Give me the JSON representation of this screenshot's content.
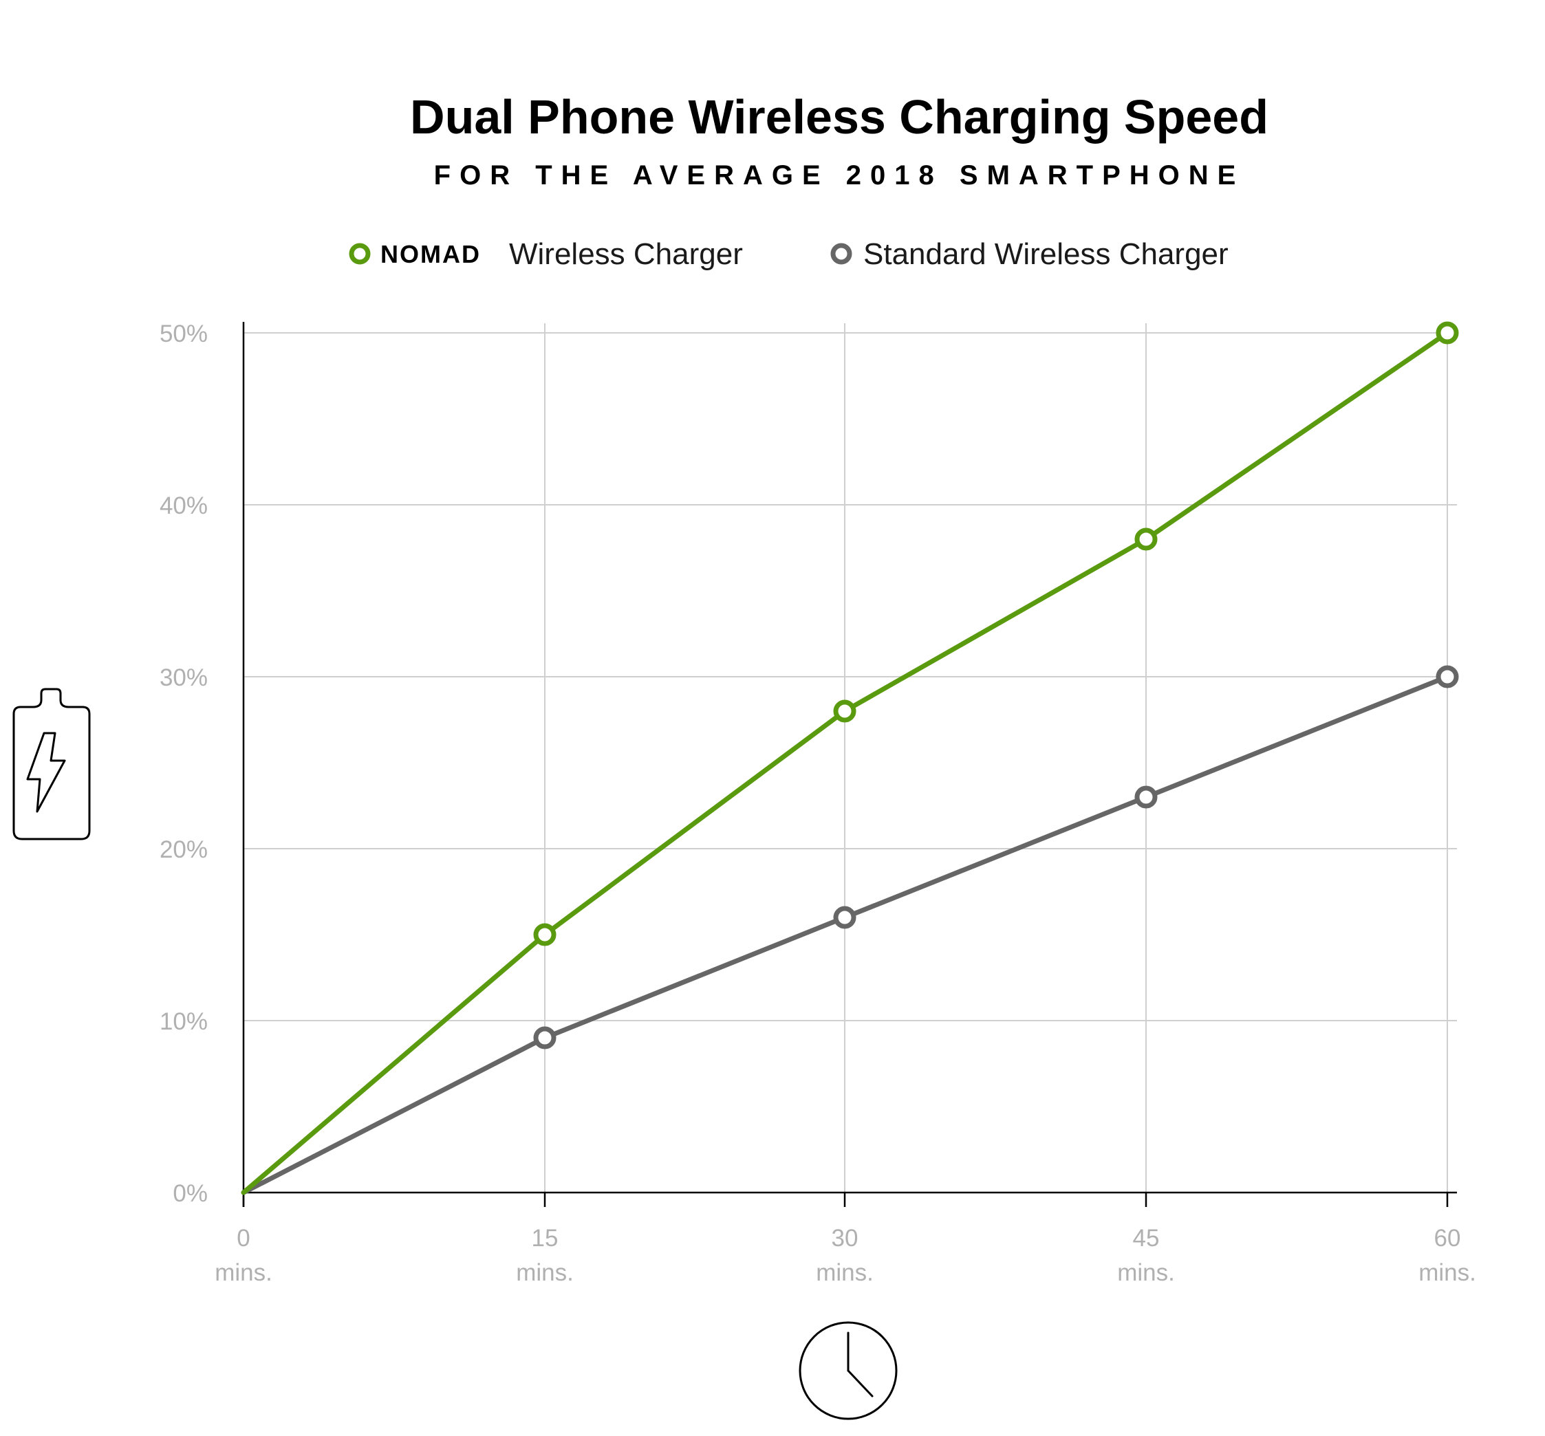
{
  "chart_data": {
    "type": "line",
    "title": "Dual Phone Wireless Charging Speed",
    "subtitle": "FOR THE AVERAGE 2018 SMARTPHONE",
    "x": [
      0,
      15,
      30,
      45,
      60
    ],
    "x_tick_labels": [
      {
        "value": "0",
        "unit": "mins."
      },
      {
        "value": "15",
        "unit": "mins."
      },
      {
        "value": "30",
        "unit": "mins."
      },
      {
        "value": "45",
        "unit": "mins."
      },
      {
        "value": "60",
        "unit": "mins."
      }
    ],
    "y_ticks": [
      0,
      10,
      20,
      30,
      40,
      50
    ],
    "y_tick_labels": [
      "0%",
      "10%",
      "20%",
      "30%",
      "40%",
      "50%"
    ],
    "xlim": [
      0,
      60
    ],
    "ylim": [
      0,
      50
    ],
    "grid": true,
    "legend_position": "top-center",
    "series": [
      {
        "name": "Wireless Charger",
        "brand": "NOMAD",
        "color": "#5a9a0e",
        "values": [
          0,
          15,
          28,
          38,
          50
        ]
      },
      {
        "name": "Standard Wireless Charger",
        "color": "#666666",
        "values": [
          0,
          9,
          16,
          23,
          30
        ]
      }
    ]
  },
  "icons": {
    "y_axis_icon": "battery-charging-icon",
    "x_axis_icon": "clock-icon"
  }
}
